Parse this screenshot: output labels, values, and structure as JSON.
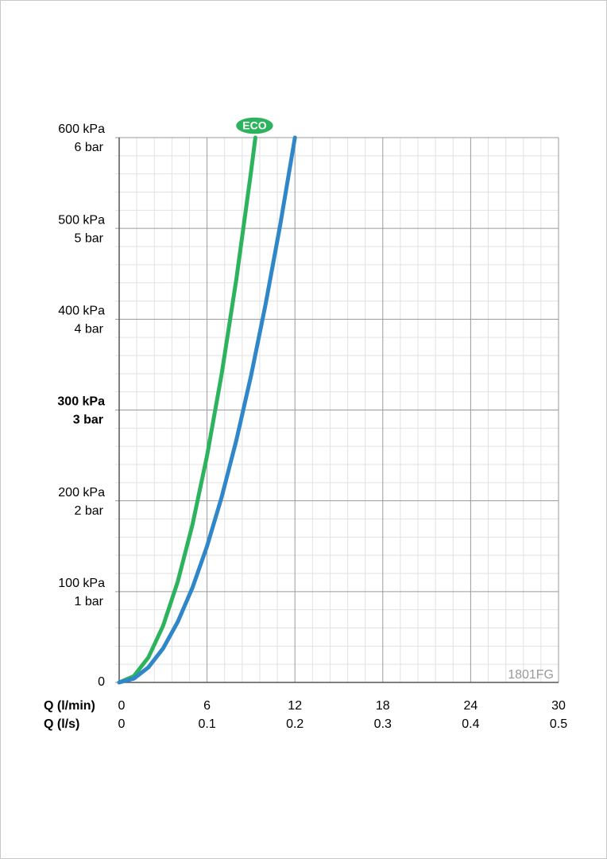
{
  "chart_data": {
    "type": "line",
    "xlabel": "Q (l/min)",
    "x2label": "Q (l/s)",
    "xlim": [
      0,
      30
    ],
    "xticks": [
      0,
      6,
      12,
      18,
      24,
      30
    ],
    "x2lim": [
      0,
      0.5
    ],
    "x2ticks": [
      0,
      0.1,
      0.2,
      0.3,
      0.4,
      0.5
    ],
    "ylim": [
      0,
      600
    ],
    "yticks": [
      0,
      {
        "value": 100,
        "label": "100 kPa"
      },
      {
        "value": 200,
        "label": "200 kPa"
      },
      {
        "value": 300,
        "label": "300 kPa"
      },
      {
        "value": 400,
        "label": "400 kPa"
      },
      {
        "value": 500,
        "label": "500 kPa"
      },
      {
        "value": 600,
        "label": "600 kPa"
      }
    ],
    "y2lim": [
      0,
      6
    ],
    "y2ticks": [
      {
        "value": 1,
        "label": "1 bar"
      },
      {
        "value": 2,
        "label": "2 bar"
      },
      {
        "value": 3,
        "label": "3 bar"
      },
      {
        "value": 4,
        "label": "4 bar"
      },
      {
        "value": 5,
        "label": "5 bar"
      },
      {
        "value": 6,
        "label": "6 bar"
      }
    ],
    "highlight_ytick": 300,
    "grid": true,
    "minor_grid": true,
    "annotation": "1801FG",
    "series": [
      {
        "name": "ECO",
        "color": "#2db35d",
        "x": [
          0,
          1,
          2,
          3,
          4,
          5,
          6,
          7,
          8,
          9,
          9.3
        ],
        "values": [
          0,
          6.9,
          27.7,
          62.4,
          111,
          173.4,
          249.7,
          339.9,
          444,
          561.9,
          600
        ]
      },
      {
        "color": "#2f86c8",
        "x": [
          0,
          1,
          2,
          3,
          4,
          5,
          6,
          7,
          8,
          9,
          10,
          11,
          12
        ],
        "values": [
          0,
          4.2,
          16.7,
          37.5,
          66.7,
          104.2,
          150,
          204.2,
          266.7,
          337.5,
          416.7,
          504.2,
          600
        ]
      }
    ]
  }
}
